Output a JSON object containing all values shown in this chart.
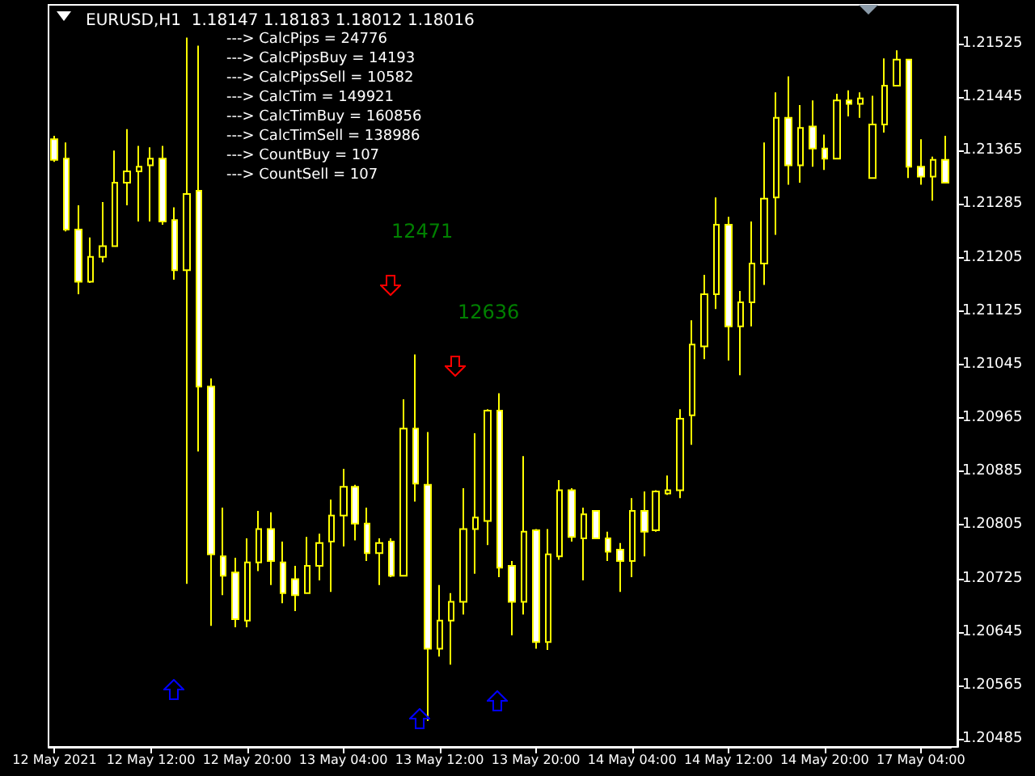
{
  "chart_data": {
    "type": "candlestick",
    "title": "EURUSD,H1  1.18147 1.18183 1.18012 1.18016",
    "annotations": [
      "---> CalcPips = 24776",
      "---> CalcPipsBuy = 14193",
      "---> CalcPipsSell = 10582",
      "---> CalcTim = 149921",
      "---> CalcTimBuy = 160856",
      "---> CalcTimSell = 138986",
      "---> CountBuy = 107",
      "---> CountSell = 107",
      "12471",
      "12636"
    ],
    "categories": [
      "12 May 2021",
      null,
      null,
      null,
      null,
      null,
      null,
      null,
      "12 May 12:00",
      null,
      null,
      null,
      null,
      null,
      null,
      null,
      "12 May 20:00",
      null,
      null,
      null,
      null,
      null,
      null,
      null,
      "13 May 04:00",
      null,
      null,
      null,
      null,
      null,
      null,
      null,
      "13 May 12:00",
      null,
      null,
      null,
      null,
      null,
      null,
      null,
      "13 May 20:00",
      null,
      null,
      null,
      null,
      null,
      null,
      null,
      "14 May 04:00",
      null,
      null,
      null,
      null,
      null,
      null,
      null,
      "14 May 12:00",
      null,
      null,
      null,
      null,
      null,
      null,
      null,
      "14 May 20:00",
      null,
      null,
      null,
      null,
      null,
      null,
      null,
      "17 May 04:00",
      null,
      null
    ],
    "color": "#ffff00",
    "ohlc": [
      [
        1.21382,
        1.21387,
        1.21348,
        1.21351
      ],
      [
        1.21353,
        1.21377,
        1.21244,
        1.21247
      ],
      [
        1.21247,
        1.21283,
        1.2115,
        1.21169
      ],
      [
        1.21169,
        1.21235,
        1.21167,
        1.21206
      ],
      [
        1.21206,
        1.21288,
        1.21198,
        1.21222
      ],
      [
        1.21222,
        1.21365,
        1.21222,
        1.21317
      ],
      [
        1.21317,
        1.21397,
        1.21283,
        1.21334
      ],
      [
        1.21334,
        1.21372,
        1.21259,
        1.21341
      ],
      [
        1.21343,
        1.2137,
        1.21259,
        1.21353
      ],
      [
        1.21353,
        1.21372,
        1.21254,
        1.21259
      ],
      [
        1.21261,
        1.2128,
        1.21172,
        1.21186
      ],
      [
        1.21186,
        1.21534,
        1.20717,
        1.213
      ],
      [
        1.21305,
        1.21522,
        1.20915,
        1.21012
      ],
      [
        1.21012,
        1.21024,
        1.20654,
        1.20761
      ],
      [
        1.20758,
        1.20831,
        1.207,
        1.20729
      ],
      [
        1.20734,
        1.20756,
        1.20652,
        1.20664
      ],
      [
        1.20662,
        1.20785,
        1.20652,
        1.20749
      ],
      [
        1.20749,
        1.20826,
        1.20736,
        1.20799
      ],
      [
        1.20799,
        1.20824,
        1.20715,
        1.20751
      ],
      [
        1.20749,
        1.2078,
        1.20688,
        1.20703
      ],
      [
        1.20724,
        1.20744,
        1.20676,
        1.207
      ],
      [
        1.20703,
        1.20787,
        1.20703,
        1.20744
      ],
      [
        1.20744,
        1.20792,
        1.20722,
        1.20778
      ],
      [
        1.2078,
        1.20843,
        1.20705,
        1.20819
      ],
      [
        1.20819,
        1.20889,
        1.20773,
        1.20862
      ],
      [
        1.20862,
        1.20865,
        1.20782,
        1.20807
      ],
      [
        1.20807,
        1.20831,
        1.20751,
        1.20763
      ],
      [
        1.20763,
        1.20785,
        1.20715,
        1.20778
      ],
      [
        1.2078,
        1.20785,
        1.20727,
        1.20729
      ],
      [
        1.20729,
        1.20993,
        1.20729,
        1.20949
      ],
      [
        1.20949,
        1.2106,
        1.2084,
        1.20867
      ],
      [
        1.20865,
        1.20944,
        1.20512,
        1.2062
      ],
      [
        1.2062,
        1.20715,
        1.20608,
        1.20662
      ],
      [
        1.20662,
        1.20703,
        1.20596,
        1.2069
      ],
      [
        1.2069,
        1.2086,
        1.20671,
        1.20799
      ],
      [
        1.20799,
        1.20942,
        1.20732,
        1.20816
      ],
      [
        1.20811,
        1.20978,
        1.20775,
        1.20976
      ],
      [
        1.20976,
        1.21002,
        1.20727,
        1.20741
      ],
      [
        1.20744,
        1.20751,
        1.2064,
        1.2069
      ],
      [
        1.2069,
        1.20908,
        1.20671,
        1.20795
      ],
      [
        1.20797,
        1.20799,
        1.2062,
        1.2063
      ],
      [
        1.2063,
        1.20799,
        1.20618,
        1.20761
      ],
      [
        1.20758,
        1.20872,
        1.20753,
        1.20857
      ],
      [
        1.20857,
        1.2086,
        1.2078,
        1.20787
      ],
      [
        1.20785,
        1.20831,
        1.20722,
        1.20821
      ],
      [
        1.20826,
        1.20826,
        1.20785,
        1.20785
      ],
      [
        1.20785,
        1.20795,
        1.20751,
        1.20765
      ],
      [
        1.20768,
        1.20778,
        1.20705,
        1.20751
      ],
      [
        1.20751,
        1.20845,
        1.20727,
        1.20826
      ],
      [
        1.20826,
        1.20855,
        1.20758,
        1.20795
      ],
      [
        1.20797,
        1.20857,
        1.20795,
        1.20855
      ],
      [
        1.20852,
        1.20879,
        1.2085,
        1.20857
      ],
      [
        1.20857,
        1.20978,
        1.20845,
        1.20964
      ],
      [
        1.20969,
        1.21111,
        1.20925,
        1.21075
      ],
      [
        1.21072,
        1.21179,
        1.21053,
        1.2115
      ],
      [
        1.2115,
        1.21295,
        1.21128,
        1.21254
      ],
      [
        1.21254,
        1.21266,
        1.21051,
        1.21102
      ],
      [
        1.21102,
        1.21155,
        1.21029,
        1.21138
      ],
      [
        1.21138,
        1.21259,
        1.21102,
        1.21196
      ],
      [
        1.21196,
        1.21377,
        1.21164,
        1.21293
      ],
      [
        1.21295,
        1.21452,
        1.21239,
        1.21414
      ],
      [
        1.21414,
        1.21476,
        1.21314,
        1.21343
      ],
      [
        1.21343,
        1.21433,
        1.21317,
        1.21399
      ],
      [
        1.21401,
        1.2144,
        1.21341,
        1.21368
      ],
      [
        1.21368,
        1.21389,
        1.21336,
        1.21353
      ],
      [
        1.21353,
        1.2145,
        1.21353,
        1.2144
      ],
      [
        1.2144,
        1.21455,
        1.21416,
        1.21435
      ],
      [
        1.21435,
        1.21452,
        1.21414,
        1.21443
      ],
      [
        1.21324,
        1.21447,
        1.21324,
        1.21404
      ],
      [
        1.21404,
        1.21503,
        1.21392,
        1.21462
      ],
      [
        1.21462,
        1.21515,
        1.21462,
        1.21501
      ],
      [
        1.21501,
        1.21501,
        1.21324,
        1.21341
      ],
      [
        1.21341,
        1.21382,
        1.21314,
        1.21326
      ],
      [
        1.21326,
        1.21356,
        1.2129,
        1.21351
      ],
      [
        1.21351,
        1.21387,
        1.21317,
        1.21317
      ]
    ],
    "ylim": [
      1.20473,
      1.21583
    ],
    "yticks": [
      1.20485,
      1.20565,
      1.20645,
      1.20725,
      1.20805,
      1.20885,
      1.20965,
      1.21045,
      1.21125,
      1.21205,
      1.21285,
      1.21365,
      1.21445,
      1.21525
    ],
    "grid": false
  }
}
